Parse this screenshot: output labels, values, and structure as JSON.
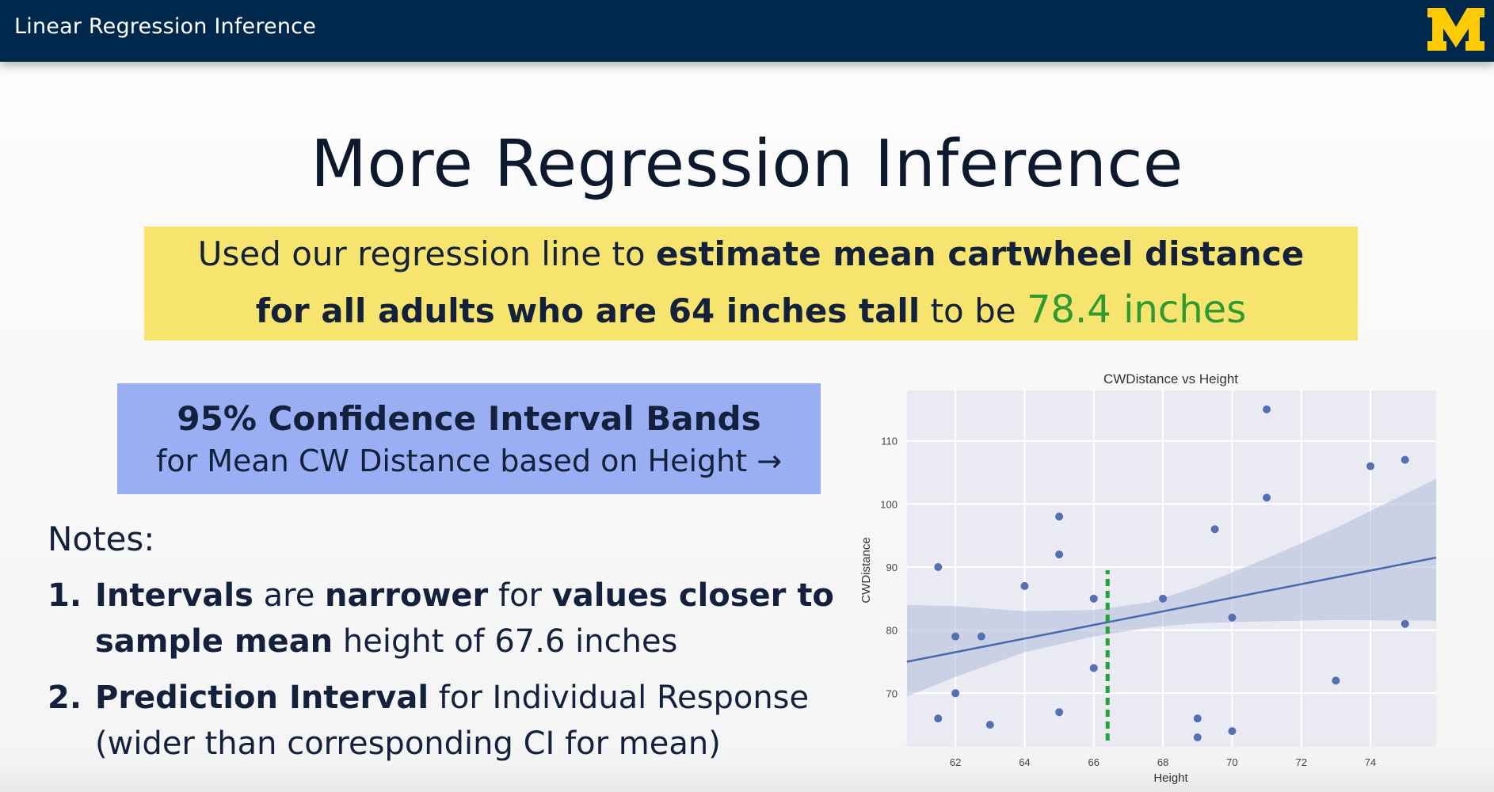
{
  "header": {
    "title": "Linear Regression Inference",
    "logo_text": "M",
    "logo_color": "#ffcb05",
    "bar_color": "#00274c"
  },
  "slide": {
    "title": "More Regression Inference",
    "summary": {
      "part1": "Used our regression line to ",
      "part2_bold": "estimate mean cartwheel distance",
      "part3_bold": "for all adults who are 64 inches tall",
      "part4": " to be ",
      "part5_green": "78.4 inches"
    },
    "ci_box": {
      "line1": "95% Confidence Interval Bands",
      "line2": "for Mean CW Distance based on Height →"
    },
    "notes": {
      "heading": "Notes:",
      "items": [
        {
          "number": "1.",
          "seg1_bold": "Intervals",
          "seg2": " are ",
          "seg3_bold": "narrower",
          "seg4": " for ",
          "seg5_bold": "values closer to sample mean",
          "seg6": " height of 67.6 inches"
        },
        {
          "number": "2.",
          "seg1_bold": "Prediction Interval",
          "seg2": " for Individual Response (wider than corresponding CI for mean)"
        }
      ]
    }
  },
  "chart_data": {
    "type": "scatter",
    "title": "CWDistance vs Height",
    "xlabel": "Height",
    "ylabel": "CWDistance",
    "xlim": [
      60.6,
      75.9
    ],
    "ylim": [
      61.5,
      118
    ],
    "xticks": [
      62,
      64,
      66,
      68,
      70,
      72,
      74
    ],
    "yticks": [
      70,
      80,
      90,
      100,
      110
    ],
    "grid": true,
    "series": [
      {
        "points": [
          [
            61.5,
            90
          ],
          [
            61.5,
            66
          ],
          [
            62.0,
            79
          ],
          [
            62.0,
            70
          ],
          [
            62.75,
            79
          ],
          [
            63.0,
            65
          ],
          [
            64.0,
            87
          ],
          [
            65.0,
            98
          ],
          [
            65.0,
            92
          ],
          [
            65.0,
            67
          ],
          [
            66.0,
            85
          ],
          [
            66.0,
            74
          ],
          [
            68.0,
            85
          ],
          [
            69.0,
            66
          ],
          [
            69.0,
            63
          ],
          [
            69.5,
            96
          ],
          [
            70.0,
            82
          ],
          [
            70.0,
            64
          ],
          [
            71.0,
            115
          ],
          [
            71.0,
            101
          ],
          [
            73.0,
            72
          ],
          [
            74.0,
            106
          ],
          [
            75.0,
            107
          ],
          [
            75.0,
            81
          ]
        ]
      }
    ],
    "regression_line": {
      "x": [
        60.6,
        75.9
      ],
      "y": [
        75.0,
        91.5
      ]
    },
    "confidence_band": {
      "x": [
        60.6,
        62,
        64,
        66,
        67.6,
        69,
        71,
        73,
        75.9
      ],
      "lower": [
        69.5,
        72.6,
        76.5,
        79.0,
        80.4,
        81.1,
        81.4,
        81.6,
        81.5
      ],
      "upper": [
        84.0,
        83.8,
        83.0,
        83.2,
        84.4,
        86.9,
        91.4,
        96.2,
        104.0
      ]
    },
    "reference_line": {
      "x": 66.4,
      "y_range": [
        62.5,
        89.5
      ],
      "style": "dashed",
      "color": "#22a33a"
    },
    "colors": {
      "points": "#5470b4",
      "line": "#4a68ae",
      "band": "#aebbd9",
      "background": "#eaeaf2"
    }
  }
}
